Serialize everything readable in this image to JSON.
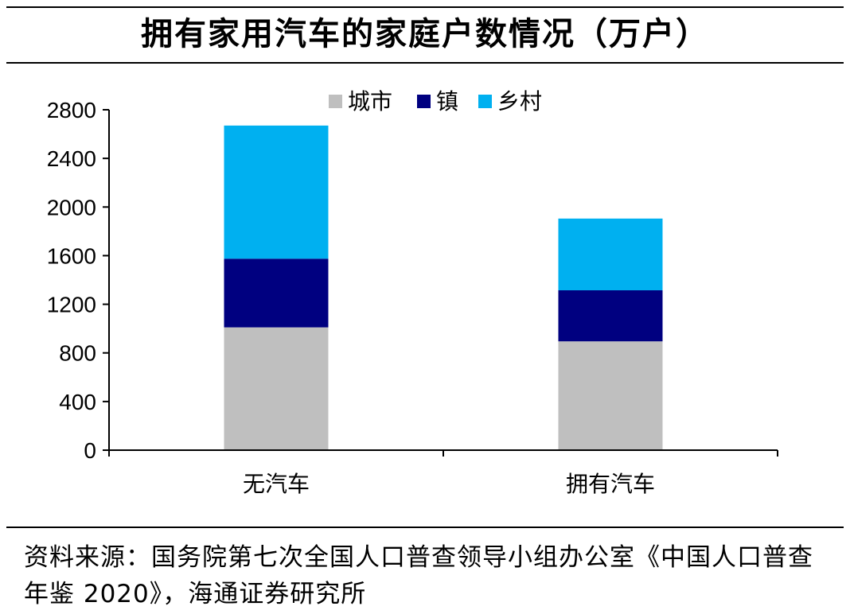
{
  "chart_data": {
    "type": "bar",
    "stacked": true,
    "title": "拥有家用汽车的家庭户数情况（万户）",
    "categories": [
      "无汽车",
      "拥有汽车"
    ],
    "series": [
      {
        "name": "城市",
        "values": [
          1010,
          895
        ],
        "color": "#bfbfbf"
      },
      {
        "name": "镇",
        "values": [
          565,
          420
        ],
        "color": "#000080"
      },
      {
        "name": "乡村",
        "values": [
          1095,
          590
        ],
        "color": "#00b0f0"
      }
    ],
    "ylim": [
      0,
      2800
    ],
    "yticks": [
      "0",
      "400",
      "800",
      "1200",
      "1600",
      "2000",
      "2400",
      "2800"
    ],
    "grid": false,
    "legend_position": "top"
  },
  "source_text": "资料来源：国务院第七次全国人口普查领导小组办公室《中国人口普查年鉴 2020》，海通证券研究所"
}
